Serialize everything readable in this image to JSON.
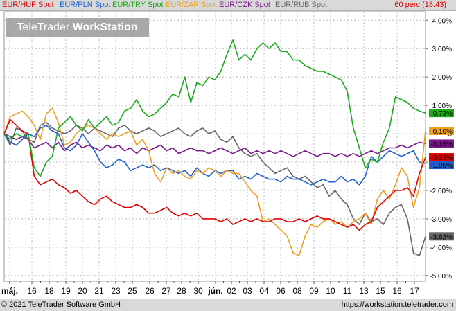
{
  "legend": {
    "items": [
      {
        "label": "EUR/HUF Spot",
        "color": "#e00000"
      },
      {
        "label": "EUR/PLN Spot",
        "color": "#1f5fd0"
      },
      {
        "label": "EUR/TRY Spot",
        "color": "#1aaa1a"
      },
      {
        "label": "EUR/ZAR Spot",
        "color": "#f0a020"
      },
      {
        "label": "EUR/CZK Spot",
        "color": "#7a1a8a"
      },
      {
        "label": "EUR/RUB Spot",
        "color": "#666666"
      }
    ],
    "time": "60 perc (18:43)"
  },
  "watermark": {
    "brand": "TeleTrader",
    "product": "WorkStation"
  },
  "footer": {
    "copyright": "© 2021 TeleTrader Software GmbH",
    "url": "https://workstation.teletrader.com"
  },
  "chart_data": {
    "type": "line",
    "x_tick_labels": [
      "máj.",
      "16",
      "18",
      "19",
      "20",
      "21",
      "23",
      "25",
      "26",
      "27",
      "28",
      "30",
      "jún.",
      "02",
      "03",
      "04",
      "06",
      "08",
      "09",
      "10",
      "11",
      "13",
      "15",
      "16",
      "17"
    ],
    "y_tick_labels": [
      "4,00%",
      "3,00%",
      "2,00%",
      "1,00%",
      "0",
      "-1,00%",
      "-2,00%",
      "-3,00%",
      "-4,00%",
      "-5,00%"
    ],
    "ylim": [
      -5.2,
      4.3
    ],
    "y_unit": "%",
    "grid": true,
    "end_labels": [
      {
        "text": "0,73%",
        "value": 0.73,
        "color": "#1aaa1a"
      },
      {
        "text": "0,10%",
        "value": 0.1,
        "color": "#f0a020"
      },
      {
        "text": "-0,35%",
        "value": -0.35,
        "color": "#7a1a8a"
      },
      {
        "text": "-0,83%",
        "value": -0.83,
        "color": "#e00000"
      },
      {
        "text": "-1,05%",
        "value": -1.05,
        "color": "#1f5fd0"
      },
      {
        "text": "-3,62%",
        "value": -3.62,
        "color": "#666666"
      }
    ],
    "series": [
      {
        "name": "EUR/HUF Spot",
        "color": "#e00000",
        "x": [
          0,
          1,
          2,
          3,
          4,
          5,
          6,
          7,
          8,
          9,
          10,
          11,
          12,
          13,
          14,
          15,
          16,
          17,
          18,
          19,
          20,
          21,
          22,
          23,
          24,
          25,
          26,
          27,
          28,
          29,
          30,
          31,
          32,
          33,
          34,
          35,
          36,
          37,
          38,
          39,
          40,
          41,
          42,
          43,
          44,
          45,
          46,
          47,
          48,
          49,
          50,
          51,
          52,
          53,
          54,
          55,
          56,
          57,
          58,
          59,
          60,
          61,
          62,
          63,
          64,
          65,
          66,
          67,
          68,
          69,
          70
        ],
        "y": [
          0,
          0.5,
          0.3,
          0.1,
          0,
          -1.5,
          -1.8,
          -1.7,
          -1.6,
          -1.8,
          -1.9,
          -2.1,
          -2.0,
          -2.2,
          -2.4,
          -2.5,
          -2.3,
          -2.2,
          -2.4,
          -2.5,
          -2.6,
          -2.6,
          -2.5,
          -2.6,
          -2.8,
          -2.8,
          -2.7,
          -2.6,
          -2.8,
          -2.9,
          -2.8,
          -2.9,
          -2.8,
          -3.0,
          -3.0,
          -3.0,
          -3.1,
          -3.0,
          -3.2,
          -3.1,
          -3.0,
          -3.1,
          -3.0,
          -3.1,
          -3.1,
          -3.0,
          -3.0,
          -3.1,
          -3.1,
          -3.0,
          -3.1,
          -3.0,
          -2.9,
          -3.0,
          -3.0,
          -3.1,
          -3.2,
          -3.3,
          -3.2,
          -3.4,
          -3.2,
          -3.1,
          -2.6,
          -2.4,
          -2.2,
          -2.0,
          -2.0,
          -1.9,
          -2.2,
          -1.4,
          -0.83
        ]
      },
      {
        "name": "EUR/PLN Spot",
        "color": "#1f5fd0",
        "x": [
          0,
          1,
          2,
          3,
          4,
          5,
          6,
          7,
          8,
          9,
          10,
          11,
          12,
          13,
          14,
          15,
          16,
          17,
          18,
          19,
          20,
          21,
          22,
          23,
          24,
          25,
          26,
          27,
          28,
          29,
          30,
          31,
          32,
          33,
          34,
          35,
          36,
          37,
          38,
          39,
          40,
          41,
          42,
          43,
          44,
          45,
          46,
          47,
          48,
          49,
          50,
          51,
          52,
          53,
          54,
          55,
          56,
          57,
          58,
          59,
          60,
          61,
          62,
          63,
          64,
          65,
          66,
          67,
          68,
          69,
          70
        ],
        "y": [
          0,
          -0.3,
          -0.4,
          -0.2,
          0,
          -0.1,
          0.2,
          0.3,
          0.1,
          0.0,
          -0.5,
          -0.6,
          -0.4,
          0.0,
          -0.3,
          -0.6,
          -1.0,
          -1.2,
          -1.1,
          -0.9,
          -1.0,
          -1.3,
          -1.2,
          -1.1,
          -1.2,
          -1.1,
          -1.3,
          -1.2,
          -1.3,
          -1.4,
          -1.3,
          -1.5,
          -1.2,
          -1.4,
          -1.5,
          -1.3,
          -1.4,
          -1.3,
          -1.3,
          -1.6,
          -1.5,
          -1.6,
          -1.4,
          -1.5,
          -1.6,
          -1.6,
          -1.7,
          -1.5,
          -1.6,
          -1.6,
          -1.7,
          -1.8,
          -1.7,
          -1.6,
          -1.7,
          -1.7,
          -1.5,
          -1.7,
          -1.6,
          -1.8,
          -1.5,
          -0.8,
          -1.0,
          -0.8,
          -0.6,
          -0.7,
          -0.8,
          -0.7,
          -0.6,
          -1.0,
          -1.05
        ]
      },
      {
        "name": "EUR/TRY Spot",
        "color": "#1aaa1a",
        "x": [
          0,
          1,
          2,
          3,
          4,
          5,
          6,
          7,
          8,
          9,
          10,
          11,
          12,
          13,
          14,
          15,
          16,
          17,
          18,
          19,
          20,
          21,
          22,
          23,
          24,
          25,
          26,
          27,
          28,
          29,
          30,
          31,
          32,
          33,
          34,
          35,
          36,
          37,
          38,
          39,
          40,
          41,
          42,
          43,
          44,
          45,
          46,
          47,
          48,
          49,
          50,
          51,
          52,
          53,
          54,
          55,
          56,
          57,
          58,
          59,
          60,
          61,
          62,
          63,
          64,
          65,
          66,
          67,
          68,
          69,
          70
        ],
        "y": [
          0,
          -0.2,
          0.0,
          -0.1,
          0.0,
          -1.2,
          -1.5,
          -1.0,
          -0.8,
          0.2,
          0.4,
          0.6,
          0.3,
          0.1,
          0.5,
          0.2,
          0.4,
          0.6,
          0.3,
          0.4,
          0.8,
          0.9,
          1.2,
          0.8,
          0.6,
          0.7,
          0.9,
          1.1,
          1.4,
          1.3,
          2.0,
          1.1,
          1.8,
          1.7,
          2.0,
          1.9,
          2.2,
          2.8,
          3.3,
          2.6,
          2.8,
          2.6,
          3.0,
          3.2,
          3.0,
          3.2,
          2.9,
          2.9,
          2.6,
          2.6,
          2.4,
          2.3,
          2.2,
          2.2,
          2.1,
          2.0,
          1.9,
          1.5,
          0.2,
          -0.5,
          -1.2,
          -0.9,
          -1.0,
          -0.3,
          0.2,
          1.3,
          1.2,
          1.1,
          0.9,
          0.8,
          0.73
        ]
      },
      {
        "name": "EUR/ZAR Spot",
        "color": "#f0a020",
        "x": [
          0,
          1,
          2,
          3,
          4,
          5,
          6,
          7,
          8,
          9,
          10,
          11,
          12,
          13,
          14,
          15,
          16,
          17,
          18,
          19,
          20,
          21,
          22,
          23,
          24,
          25,
          26,
          27,
          28,
          29,
          30,
          31,
          32,
          33,
          34,
          35,
          36,
          37,
          38,
          39,
          40,
          41,
          42,
          43,
          44,
          45,
          46,
          47,
          48,
          49,
          50,
          51,
          52,
          53,
          54,
          55,
          56,
          57,
          58,
          59,
          60,
          61,
          62,
          63,
          64,
          65,
          66,
          67,
          68,
          69,
          70
        ],
        "y": [
          0,
          0.6,
          0.7,
          0.8,
          0.6,
          0.3,
          -0.2,
          0.7,
          0.9,
          0.4,
          -0.4,
          -0.3,
          0.0,
          0.2,
          0.3,
          0.2,
          0.0,
          -0.2,
          0.0,
          -0.1,
          0.0,
          0.1,
          -0.4,
          -0.2,
          -0.6,
          -1.4,
          -1.7,
          -1.2,
          -1.4,
          -1.3,
          -1.5,
          -1.6,
          -1.3,
          -1.4,
          -1.2,
          -1.3,
          -1.5,
          -1.3,
          -1.4,
          -1.4,
          -1.7,
          -2.0,
          -2.2,
          -3.1,
          -3.0,
          -3.2,
          -3.4,
          -3.6,
          -4.2,
          -4.3,
          -3.6,
          -3.2,
          -3.3,
          -3.1,
          -3.0,
          -3.2,
          -3.1,
          -3.3,
          -3.1,
          -3.0,
          -2.8,
          -3.2,
          -2.3,
          -2.0,
          -2.3,
          -1.8,
          -1.2,
          -1.5,
          -2.6,
          -1.9,
          0.1
        ]
      },
      {
        "name": "EUR/CZK Spot",
        "color": "#7a1a8a",
        "x": [
          0,
          1,
          2,
          3,
          4,
          5,
          6,
          7,
          8,
          9,
          10,
          11,
          12,
          13,
          14,
          15,
          16,
          17,
          18,
          19,
          20,
          21,
          22,
          23,
          24,
          25,
          26,
          27,
          28,
          29,
          30,
          31,
          32,
          33,
          34,
          35,
          36,
          37,
          38,
          39,
          40,
          41,
          42,
          43,
          44,
          45,
          46,
          47,
          48,
          49,
          50,
          51,
          52,
          53,
          54,
          55,
          56,
          57,
          58,
          59,
          60,
          61,
          62,
          63,
          64,
          65,
          66,
          67,
          68,
          69,
          70
        ],
        "y": [
          0,
          -0.1,
          -0.2,
          -0.1,
          -0.2,
          -0.5,
          -0.4,
          -0.3,
          -0.5,
          -0.3,
          -0.6,
          -0.4,
          -0.3,
          -0.5,
          -0.4,
          -0.5,
          -0.6,
          -0.4,
          -0.5,
          -0.4,
          -0.6,
          -0.5,
          -0.7,
          -0.5,
          -0.6,
          -0.5,
          -0.4,
          -0.6,
          -0.5,
          -0.7,
          -0.6,
          -0.5,
          -0.6,
          -0.6,
          -0.7,
          -0.6,
          -0.5,
          -0.6,
          -0.7,
          -0.6,
          -0.5,
          -0.7,
          -0.6,
          -0.7,
          -0.6,
          -0.7,
          -0.6,
          -0.7,
          -0.8,
          -0.7,
          -0.6,
          -0.7,
          -0.8,
          -0.7,
          -0.7,
          -0.8,
          -0.7,
          -0.8,
          -0.7,
          -0.8,
          -0.7,
          -0.6,
          -0.7,
          -0.6,
          -0.5,
          -0.5,
          -0.4,
          -0.5,
          -0.4,
          -0.3,
          -0.35
        ]
      },
      {
        "name": "EUR/RUB Spot",
        "color": "#666666",
        "x": [
          0,
          1,
          2,
          3,
          4,
          5,
          6,
          7,
          8,
          9,
          10,
          11,
          12,
          13,
          14,
          15,
          16,
          17,
          18,
          19,
          20,
          21,
          22,
          23,
          24,
          25,
          26,
          27,
          28,
          29,
          30,
          31,
          32,
          33,
          34,
          35,
          36,
          37,
          38,
          39,
          40,
          41,
          42,
          43,
          44,
          45,
          46,
          47,
          48,
          49,
          50,
          51,
          52,
          53,
          54,
          55,
          56,
          57,
          58,
          59,
          60,
          61,
          62,
          63,
          64,
          65,
          66,
          67,
          68,
          69,
          70
        ],
        "y": [
          0,
          -0.4,
          0.2,
          0.1,
          -0.2,
          -0.3,
          0.3,
          0.4,
          0.2,
          0.1,
          0.0,
          0.1,
          0.3,
          0.2,
          0.0,
          0.2,
          0.1,
          0.0,
          -0.1,
          0.2,
          0.3,
          0.1,
          0.0,
          0.1,
          0.2,
          0.1,
          -0.1,
          0.0,
          0.1,
          0.2,
          0.0,
          -0.1,
          0.1,
          0.2,
          0.0,
          0.1,
          -0.2,
          -0.3,
          -0.1,
          -0.5,
          -0.7,
          -0.8,
          -0.7,
          -1.0,
          -1.2,
          -1.4,
          -1.3,
          -1.2,
          -1.5,
          -1.6,
          -1.5,
          -1.7,
          -1.9,
          -1.8,
          -2.2,
          -2.0,
          -2.3,
          -2.5,
          -3.0,
          -3.2,
          -2.8,
          -3.1,
          -3.0,
          -3.2,
          -2.8,
          -2.6,
          -2.5,
          -3.0,
          -4.2,
          -4.3,
          -3.62
        ]
      }
    ]
  }
}
